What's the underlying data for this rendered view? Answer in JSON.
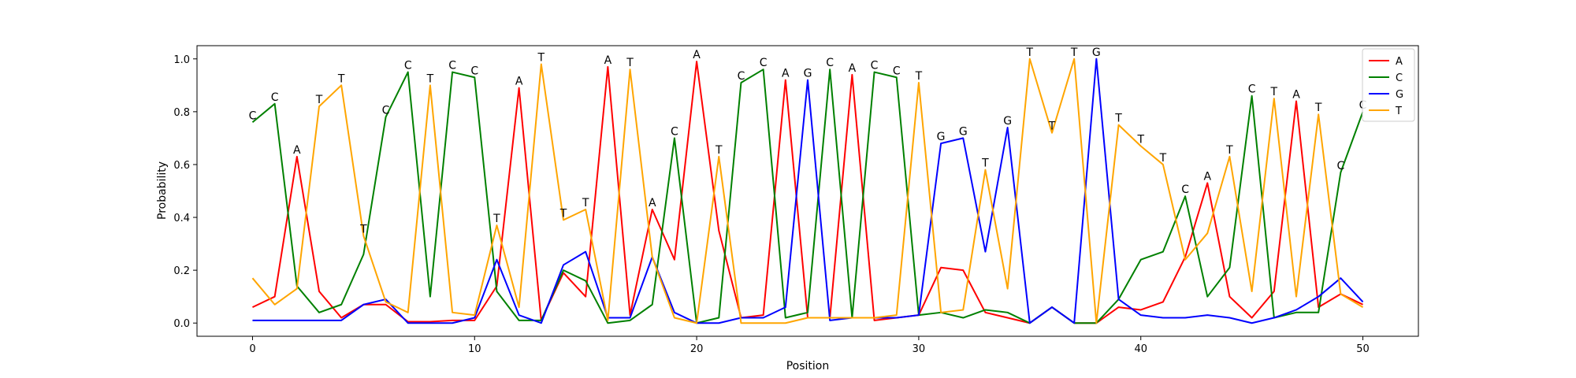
{
  "chart_data": {
    "type": "line",
    "title": "",
    "xlabel": "Position",
    "ylabel": "Probability",
    "xlim": [
      -2.5,
      52.5
    ],
    "ylim": [
      -0.05,
      1.05
    ],
    "xticks": [
      0,
      10,
      20,
      30,
      40,
      50
    ],
    "xtick_labels": [
      "0",
      "10",
      "20",
      "30",
      "40",
      "50"
    ],
    "yticks": [
      0.0,
      0.2,
      0.4,
      0.6,
      0.8,
      1.0
    ],
    "ytick_labels": [
      "0.0",
      "0.2",
      "0.4",
      "0.6",
      "0.8",
      "1.0"
    ],
    "grid": false,
    "legend_position": "top-right",
    "x": [
      0,
      1,
      2,
      3,
      4,
      5,
      6,
      7,
      8,
      9,
      10,
      11,
      12,
      13,
      14,
      15,
      16,
      17,
      18,
      19,
      20,
      21,
      22,
      23,
      24,
      25,
      26,
      27,
      28,
      29,
      30,
      31,
      32,
      33,
      34,
      35,
      36,
      37,
      38,
      39,
      40,
      41,
      42,
      43,
      44,
      45,
      46,
      47,
      48,
      49,
      50
    ],
    "series": [
      {
        "name": "A",
        "color": "#ff0000",
        "values": [
          0.06,
          0.1,
          0.63,
          0.12,
          0.02,
          0.07,
          0.07,
          0.005,
          0.005,
          0.01,
          0.01,
          0.14,
          0.89,
          0.01,
          0.19,
          0.1,
          0.97,
          0.03,
          0.43,
          0.24,
          0.99,
          0.35,
          0.02,
          0.03,
          0.92,
          0.02,
          0.02,
          0.94,
          0.01,
          0.02,
          0.03,
          0.21,
          0.2,
          0.04,
          0.02,
          0.0,
          0.06,
          0.0,
          0.0,
          0.06,
          0.05,
          0.08,
          0.25,
          0.53,
          0.1,
          0.02,
          0.12,
          0.84,
          0.06,
          0.11,
          0.07
        ]
      },
      {
        "name": "C",
        "color": "#008000",
        "values": [
          0.76,
          0.83,
          0.14,
          0.04,
          0.07,
          0.26,
          0.78,
          0.95,
          0.1,
          0.95,
          0.93,
          0.12,
          0.01,
          0.01,
          0.2,
          0.16,
          0.0,
          0.01,
          0.07,
          0.7,
          0.0,
          0.02,
          0.91,
          0.96,
          0.02,
          0.04,
          0.96,
          0.02,
          0.95,
          0.93,
          0.03,
          0.04,
          0.02,
          0.05,
          0.04,
          0.0,
          0.06,
          0.0,
          0.0,
          0.09,
          0.24,
          0.27,
          0.48,
          0.1,
          0.21,
          0.86,
          0.02,
          0.04,
          0.04,
          0.57,
          0.8
        ]
      },
      {
        "name": "G",
        "color": "#0000ff",
        "values": [
          0.01,
          0.01,
          0.01,
          0.01,
          0.01,
          0.07,
          0.09,
          0.0,
          0.0,
          0.0,
          0.02,
          0.24,
          0.03,
          0.0,
          0.22,
          0.27,
          0.02,
          0.02,
          0.25,
          0.04,
          0.0,
          0.0,
          0.02,
          0.02,
          0.06,
          0.92,
          0.01,
          0.02,
          0.02,
          0.02,
          0.03,
          0.68,
          0.7,
          0.27,
          0.74,
          0.0,
          0.06,
          0.0,
          1.0,
          0.09,
          0.03,
          0.02,
          0.02,
          0.03,
          0.02,
          0.0,
          0.02,
          0.05,
          0.1,
          0.17,
          0.08
        ]
      },
      {
        "name": "T",
        "color": "#ffa500",
        "values": [
          0.17,
          0.07,
          0.13,
          0.82,
          0.9,
          0.33,
          0.08,
          0.04,
          0.9,
          0.04,
          0.03,
          0.37,
          0.06,
          0.98,
          0.39,
          0.43,
          0.01,
          0.96,
          0.25,
          0.02,
          0.0,
          0.63,
          0.0,
          0.0,
          0.0,
          0.02,
          0.02,
          0.02,
          0.02,
          0.03,
          0.91,
          0.04,
          0.05,
          0.58,
          0.13,
          1.0,
          0.72,
          1.0,
          0.0,
          0.75,
          0.67,
          0.6,
          0.24,
          0.34,
          0.63,
          0.12,
          0.85,
          0.1,
          0.79,
          0.11,
          0.06
        ]
      }
    ],
    "annotations": [
      "C",
      "C",
      "A",
      "T",
      "T",
      "T",
      "C",
      "C",
      "T",
      "C",
      "C",
      "T",
      "A",
      "T",
      "T",
      "T",
      "A",
      "T",
      "A",
      "C",
      "A",
      "T",
      "C",
      "C",
      "A",
      "G",
      "C",
      "A",
      "C",
      "C",
      "T",
      "G",
      "G",
      "T",
      "G",
      "T",
      "T",
      "T",
      "G",
      "T",
      "T",
      "T",
      "C",
      "A",
      "T",
      "C",
      "T",
      "A",
      "T",
      "C",
      "C"
    ]
  }
}
